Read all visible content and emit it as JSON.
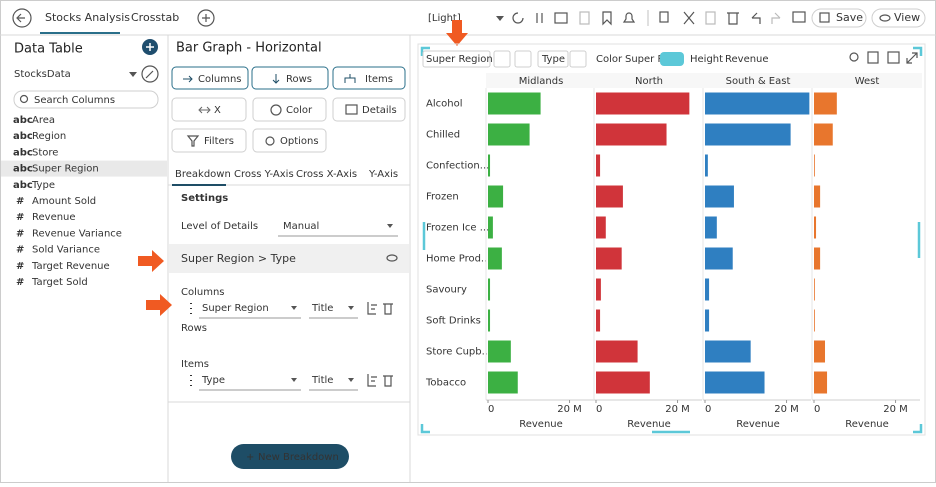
{
  "toolbar": {
    "tabs": [
      "Stocks Analysis",
      "Crosstab"
    ],
    "theme": "[Light]",
    "save": "Save",
    "view": "View"
  },
  "data_table": {
    "title": "Data Table",
    "source": "StocksData",
    "search_placeholder": "Search Columns",
    "columns": [
      {
        "kind": "abc",
        "name": "Area"
      },
      {
        "kind": "abc",
        "name": "Region"
      },
      {
        "kind": "abc",
        "name": "Store"
      },
      {
        "kind": "abc",
        "name": "Super Region"
      },
      {
        "kind": "abc",
        "name": "Type"
      },
      {
        "kind": "#",
        "name": "Amount Sold"
      },
      {
        "kind": "#",
        "name": "Revenue"
      },
      {
        "kind": "#",
        "name": "Revenue Variance"
      },
      {
        "kind": "#",
        "name": "Sold Variance"
      },
      {
        "kind": "#",
        "name": "Target Revenue"
      },
      {
        "kind": "#",
        "name": "Target Sold"
      }
    ]
  },
  "settings_panel": {
    "title": "Bar Graph - Horizontal",
    "buttons": [
      "Columns",
      "Rows",
      "Items",
      "X",
      "Color",
      "Details",
      "Filters",
      "Options"
    ],
    "tabs": [
      "Breakdown",
      "Cross Y-Axis",
      "Cross X-Axis",
      "Y-Axis"
    ],
    "settings_label": "Settings",
    "level_label": "Level of Details",
    "level_value": "Manual",
    "breakdown": "Super Region > Type",
    "columns_label": "Columns",
    "columns_field": "Super Region",
    "columns_title": "Title",
    "rows_label": "Rows",
    "items_label": "Items",
    "items_field": "Type",
    "items_title": "Title",
    "new_breakdown": "New Breakdown"
  },
  "chart_toolbar": {
    "breakdown": "Super Region",
    "type": "Type",
    "color_label": "Color",
    "color_value": "Super Re",
    "height_label": "Height",
    "height_value": "Revenue"
  },
  "chart_data": {
    "type": "bar",
    "orientation": "horizontal",
    "layout": "small-multiples",
    "categories": [
      "Alcohol",
      "Chilled",
      "Confection...",
      "Frozen",
      "Frozen Ice ...",
      "Home Prod...",
      "Savoury",
      "Soft Drinks",
      "Store Cupb...",
      "Tobacco"
    ],
    "series": [
      {
        "name": "Midlands",
        "color": "#3cb043",
        "values": [
          12.9,
          10.2,
          0.5,
          3.7,
          1.2,
          3.4,
          0.5,
          0.5,
          5.6,
          7.3
        ]
      },
      {
        "name": "North",
        "color": "#d0343a",
        "values": [
          22.9,
          17.3,
          1.0,
          6.6,
          2.4,
          6.3,
          1.2,
          1.0,
          10.2,
          13.2
        ]
      },
      {
        "name": "South & East",
        "color": "#2f7fc1",
        "values": [
          25.6,
          21.0,
          0.7,
          7.1,
          2.9,
          6.8,
          1.0,
          1.0,
          11.2,
          14.6
        ]
      },
      {
        "name": "West",
        "color": "#e8762d",
        "values": [
          5.6,
          4.6,
          0.2,
          1.5,
          0.5,
          1.5,
          0.2,
          0.2,
          2.7,
          3.2
        ]
      }
    ],
    "xlim": [
      0,
      26
    ],
    "xticks": [
      0,
      {
        "value": 20,
        "label": "20 M"
      }
    ],
    "x_label": "Revenue"
  }
}
